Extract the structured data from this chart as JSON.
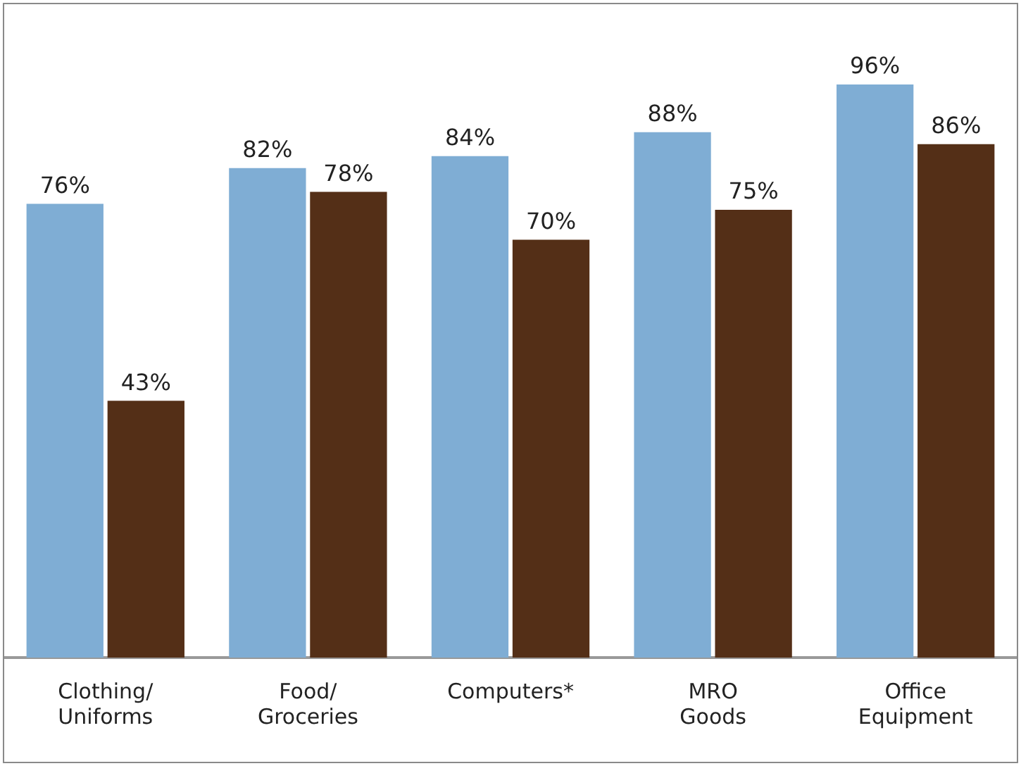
{
  "chart_data": {
    "type": "bar",
    "categories": [
      "Clothing/ Uniforms",
      "Food/ Groceries",
      "Computers*",
      "MRO Goods",
      "Office Equipment"
    ],
    "series": [
      {
        "color": "#7fadd4",
        "values": [
          76,
          82,
          84,
          88,
          96
        ],
        "value_labels": [
          "76%",
          "82%",
          "84%",
          "88%",
          "96%"
        ]
      },
      {
        "color": "#542f17",
        "values": [
          43,
          78,
          70,
          75,
          86
        ],
        "value_labels": [
          "43%",
          "78%",
          "70%",
          "75%",
          "86%"
        ]
      }
    ],
    "grid": false,
    "legend": false,
    "tick_labels": "x"
  }
}
